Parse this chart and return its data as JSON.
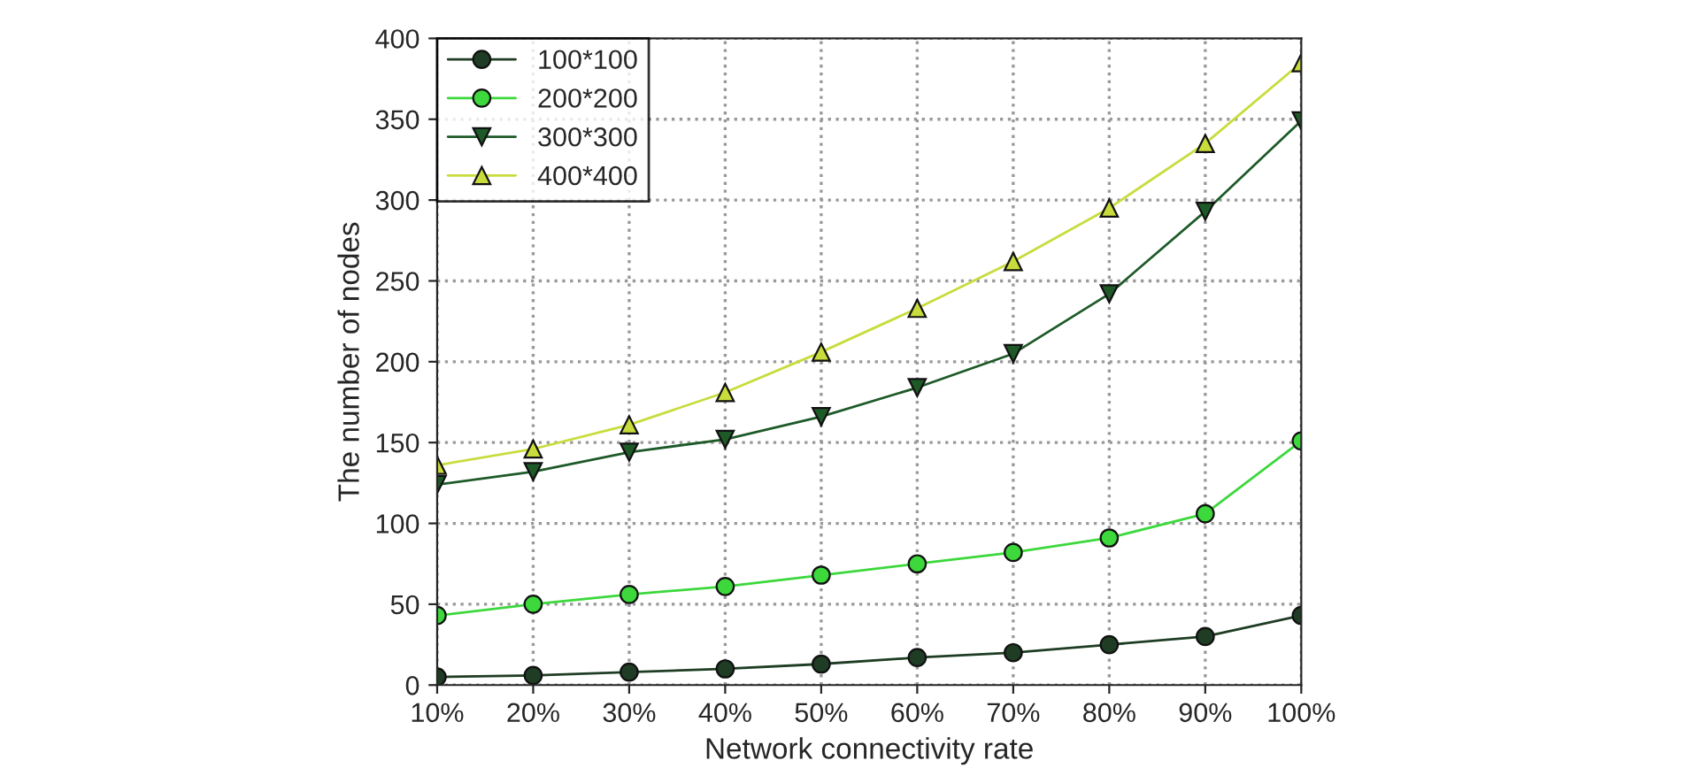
{
  "chart_data": {
    "type": "line",
    "xlabel": "Network connectivity rate",
    "ylabel": "The number of nodes",
    "categories": [
      "10%",
      "20%",
      "30%",
      "40%",
      "50%",
      "60%",
      "70%",
      "80%",
      "90%",
      "100%"
    ],
    "series": [
      {
        "name": "100*100",
        "color": "#1f3d24",
        "marker": "circle",
        "values": [
          5,
          6,
          8,
          10,
          13,
          17,
          20,
          25,
          30,
          43
        ]
      },
      {
        "name": "200*200",
        "color": "#3cd83c",
        "marker": "circle",
        "values": [
          43,
          50,
          56,
          61,
          68,
          75,
          82,
          91,
          106,
          151
        ]
      },
      {
        "name": "300*300",
        "color": "#1e5a28",
        "marker": "triangle_down",
        "values": [
          124,
          132,
          144,
          152,
          166,
          184,
          205,
          242,
          293,
          349
        ]
      },
      {
        "name": "400*400",
        "color": "#c8dc3c",
        "marker": "triangle",
        "values": [
          136,
          146,
          161,
          181,
          206,
          233,
          262,
          295,
          335,
          385
        ]
      }
    ],
    "ylim": [
      0,
      400
    ],
    "yticks": [
      0,
      50,
      100,
      150,
      200,
      250,
      300,
      350,
      400
    ],
    "grid": true,
    "line_style": "solid",
    "legend": "top left"
  }
}
